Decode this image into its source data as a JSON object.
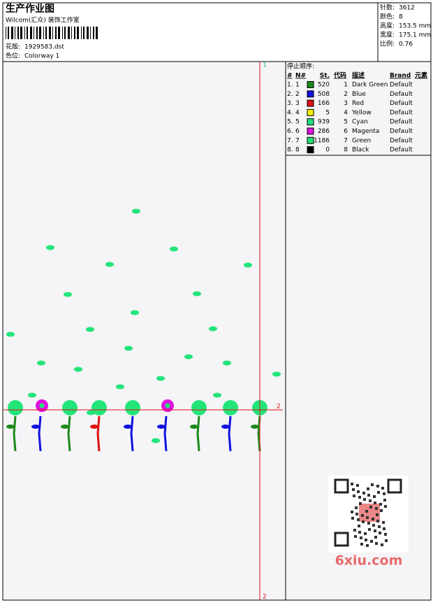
{
  "header": {
    "title": "生产作业图",
    "studio": "Wilcom(汇众) 装饰工作室",
    "design_label": "花版:",
    "design": "1929583.dst",
    "colorway_label": "色位:",
    "colorway": "Colorway 1"
  },
  "stats": [
    {
      "label": "针数:",
      "value": "3612"
    },
    {
      "label": "颜色:",
      "value": "8"
    },
    {
      "label": "高度:",
      "value": "153.5 mm"
    },
    {
      "label": "宽度:",
      "value": "175.1 mm"
    },
    {
      "label": "比例:",
      "value": "0.76"
    }
  ],
  "stop_sequence": {
    "heading": "停止顺序:",
    "columns": [
      "#",
      "N#",
      "St.",
      "代码",
      "描述",
      "Brand",
      "元素"
    ],
    "rows": [
      {
        "num": "1.",
        "needle": "1",
        "color": "#1a8a1a",
        "stitches": 520,
        "code": 1,
        "desc": "Dark Green",
        "brand": "Default"
      },
      {
        "num": "2.",
        "needle": "2",
        "color": "#1010e0",
        "stitches": 508,
        "code": 2,
        "desc": "Blue",
        "brand": "Default"
      },
      {
        "num": "3.",
        "needle": "3",
        "color": "#e01010",
        "stitches": 166,
        "code": 3,
        "desc": "Red",
        "brand": "Default"
      },
      {
        "num": "4.",
        "needle": "4",
        "color": "#f0f000",
        "stitches": 5,
        "code": 4,
        "desc": "Yellow",
        "brand": "Default"
      },
      {
        "num": "5.",
        "needle": "5",
        "color": "#20e080",
        "stitches": 939,
        "code": 5,
        "desc": "Cyan",
        "brand": "Default"
      },
      {
        "num": "6.",
        "needle": "6",
        "color": "#e010e0",
        "stitches": 286,
        "code": 6,
        "desc": "Magenta",
        "brand": "Default"
      },
      {
        "num": "7.",
        "needle": "7",
        "color": "#20e070",
        "stitches": 1186,
        "code": 7,
        "desc": "Green",
        "brand": "Default"
      },
      {
        "num": "8.",
        "needle": "8",
        "color": "#000000",
        "stitches": 0,
        "code": 8,
        "desc": "Black",
        "brand": "Default"
      }
    ]
  },
  "markers": {
    "start": "1",
    "cross": "2",
    "end": "2"
  },
  "watermark": "6xiu.com"
}
